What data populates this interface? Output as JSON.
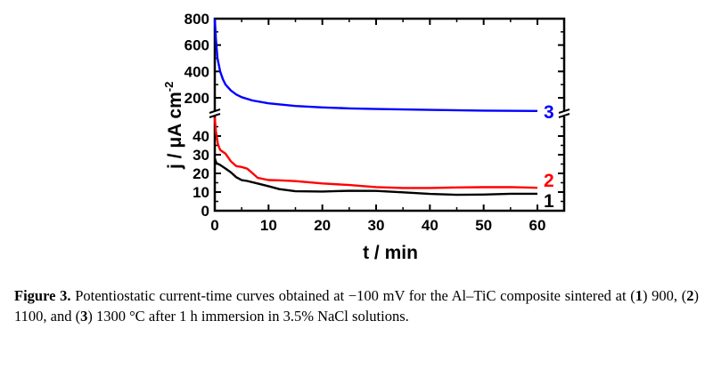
{
  "chart_data": {
    "type": "line",
    "xlabel": "t / min",
    "ylabel": "j / μA cm",
    "ylabel_sup": "-2",
    "xlim": [
      0,
      65
    ],
    "x_ticks": [
      0,
      10,
      20,
      30,
      40,
      50,
      60
    ],
    "ylim_lower": [
      0,
      52
    ],
    "ylim_upper": [
      80,
      800
    ],
    "y_ticks_lower": [
      0,
      10,
      20,
      30,
      40
    ],
    "y_ticks_upper": [
      200,
      400,
      600,
      800
    ],
    "axis_break": true,
    "grid": false,
    "series": [
      {
        "name": "1",
        "label": "1",
        "color": "#000000",
        "axis": "lower",
        "x": [
          0,
          0.3,
          1,
          2,
          3,
          4,
          5,
          6,
          8,
          10,
          12,
          15,
          20,
          25,
          30,
          35,
          40,
          45,
          50,
          55,
          60
        ],
        "y": [
          28,
          25,
          24,
          22.5,
          21,
          18.5,
          16.5,
          15.5,
          14,
          13,
          12,
          11,
          10.5,
          10.3,
          10,
          9.6,
          9.3,
          9.1,
          9,
          8.8,
          8.5
        ]
      },
      {
        "name": "2",
        "label": "2",
        "color": "#ff0000",
        "axis": "lower",
        "x": [
          0,
          0.2,
          0.6,
          1,
          2,
          3,
          4,
          5,
          6,
          7,
          8,
          10,
          12,
          15,
          20,
          25,
          30,
          35,
          40,
          45,
          50,
          55,
          60
        ],
        "y": [
          50,
          42,
          35,
          32.5,
          31,
          27,
          24,
          23,
          22,
          20,
          18,
          17,
          16.5,
          15.5,
          14,
          13.5,
          13,
          12.8,
          12.5,
          12.2,
          12,
          12.3,
          12.5
        ]
      },
      {
        "name": "3",
        "label": "3",
        "color": "#0000ff",
        "axis": "upper",
        "x": [
          0,
          0.2,
          0.5,
          1,
          1.5,
          2,
          3,
          4,
          5,
          7,
          10,
          15,
          20,
          25,
          30,
          40,
          50,
          60
        ],
        "y": [
          800,
          650,
          500,
          400,
          340,
          300,
          255,
          225,
          205,
          180,
          158,
          138,
          127,
          120,
          115,
          108,
          103,
          100
        ]
      }
    ]
  },
  "caption": {
    "figure_label": "Figure 3.",
    "text_1": " Potentiostatic current-time curves obtained at −100 mV for the Al–TiC composite sintered at (",
    "n1": "1",
    "text_2": ") 900, (",
    "n2": "2",
    "text_3": ") 1100, and (",
    "n3": "3",
    "text_4": ") 1300 °C after 1 h immersion in 3.5% NaCl solutions."
  }
}
